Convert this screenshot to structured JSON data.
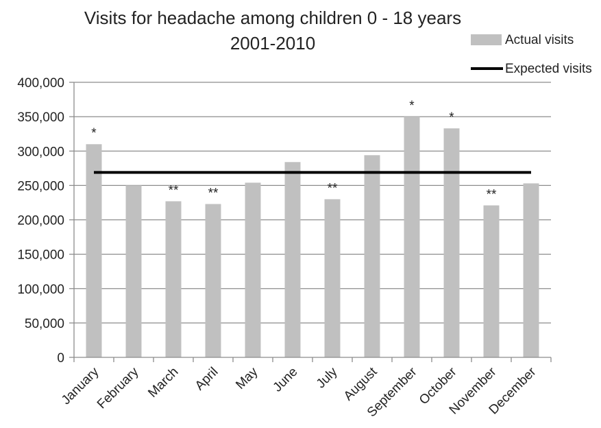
{
  "chart_data": {
    "type": "bar",
    "title_lines": [
      "Visits for headache among children 0 - 18 years",
      "2001-2010"
    ],
    "categories": [
      "January",
      "February",
      "March",
      "April",
      "May",
      "June",
      "July",
      "August",
      "September",
      "October",
      "November",
      "December"
    ],
    "series": [
      {
        "name": "Actual visits",
        "kind": "bar",
        "color": "#c0c0c0",
        "values": [
          310000,
          250000,
          227000,
          223000,
          254000,
          284000,
          230000,
          294000,
          350000,
          333000,
          221000,
          253000
        ]
      },
      {
        "name": "Expected visits",
        "kind": "line",
        "color": "#000000",
        "values": [
          269000,
          269000,
          269000,
          269000,
          269000,
          269000,
          269000,
          269000,
          269000,
          269000,
          269000,
          269000
        ]
      }
    ],
    "annotations": [
      "*",
      "",
      "**",
      "**",
      "",
      "",
      "**",
      "",
      "*",
      "*",
      "**",
      ""
    ],
    "ylim": [
      0,
      400000
    ],
    "yticks": [
      0,
      50000,
      100000,
      150000,
      200000,
      250000,
      300000,
      350000,
      400000
    ],
    "ytick_labels": [
      "0",
      "50,000",
      "100,000",
      "150,000",
      "200,000",
      "250,000",
      "300,000",
      "350,000",
      "400,000"
    ],
    "xlabel": "",
    "ylabel": "",
    "grid": true,
    "legend_position": "top-right",
    "colors": {
      "gridline": "#8c8c8c",
      "axis": "#8c8c8c",
      "text": "#222222"
    }
  }
}
